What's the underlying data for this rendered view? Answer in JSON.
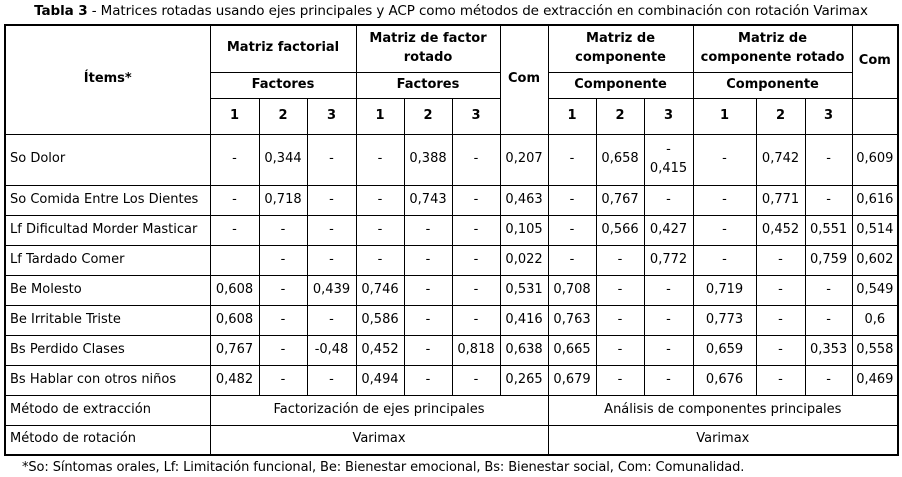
{
  "title": {
    "label": "Tabla 3",
    "rest": " - Matrices rotadas usando ejes principales y ACP como métodos de extracción en combinación con rotación Varimax"
  },
  "table": {
    "header": {
      "items": "Ítems*",
      "groups": {
        "0": "Matriz factorial",
        "1": "Matriz de factor\nrotado",
        "2": "Matriz de\ncomponente",
        "3": "Matriz de\ncomponente rotado"
      },
      "subgroups": {
        "0": "Factores",
        "1": "Factores",
        "2": "Componente",
        "3": "Componente"
      },
      "com_left": "Com",
      "com_right": "Com",
      "numbers": [
        "1",
        "2",
        "3",
        "1",
        "2",
        "3",
        "1",
        "2",
        "3",
        "1",
        "2",
        "3"
      ]
    },
    "rows": [
      {
        "item": "So Dolor",
        "cells": [
          "-",
          "0,344",
          "-",
          "-",
          "0,388",
          "-",
          "0,207",
          "-",
          "0,658",
          "-\n0,415",
          "-",
          "0,742",
          "-",
          "0,609"
        ]
      },
      {
        "item": "So Comida Entre Los Dientes",
        "cells": [
          "-",
          "0,718",
          "-",
          "-",
          "0,743",
          "-",
          "0,463",
          "-",
          "0,767",
          "-",
          "-",
          "0,771",
          "-",
          "0,616"
        ]
      },
      {
        "item": "Lf Dificultad Morder Masticar",
        "cells": [
          "-",
          "-",
          "-",
          "-",
          "-",
          "-",
          "0,105",
          "-",
          "0,566",
          "0,427",
          "-",
          "0,452",
          "0,551",
          "0,514"
        ]
      },
      {
        "item": "Lf Tardado Comer",
        "cells": [
          "",
          "-",
          "-",
          "-",
          "-",
          "-",
          "0,022",
          "-",
          "-",
          "0,772",
          "-",
          "-",
          "0,759",
          "0,602"
        ]
      },
      {
        "item": "Be Molesto",
        "cells": [
          "0,608",
          "-",
          "0,439",
          "0,746",
          "-",
          "-",
          "0,531",
          "0,708",
          "-",
          "-",
          "0,719",
          "-",
          "-",
          "0,549"
        ]
      },
      {
        "item": "Be Irritable Triste",
        "cells": [
          "0,608",
          "-",
          "-",
          "0,586",
          "-",
          "-",
          "0,416",
          "0,763",
          "-",
          "-",
          "0,773",
          "-",
          "-",
          "0,6"
        ]
      },
      {
        "item": "Bs Perdido Clases",
        "cells": [
          "0,767",
          "-",
          "-0,48",
          "0,452",
          "-",
          "0,818",
          "0,638",
          "0,665",
          "-",
          "-",
          "0,659",
          "-",
          "0,353",
          "0,558"
        ]
      },
      {
        "item": "Bs Hablar con otros niños",
        "cells": [
          "0,482",
          "-",
          "-",
          "0,494",
          "-",
          "-",
          "0,265",
          "0,679",
          "-",
          "-",
          "0,676",
          "-",
          "-",
          "0,469"
        ]
      }
    ],
    "footer": [
      {
        "item": "Método de extracción",
        "left": "Factorización de ejes principales",
        "right": "Análisis de componentes principales"
      },
      {
        "item": "Método de rotación",
        "left": "Varimax",
        "right": "Varimax"
      }
    ]
  },
  "footnote": "*So: Síntomas orales, Lf: Limitación funcional, Be: Bienestar emocional, Bs: Bienestar social, Com: Comunalidad."
}
